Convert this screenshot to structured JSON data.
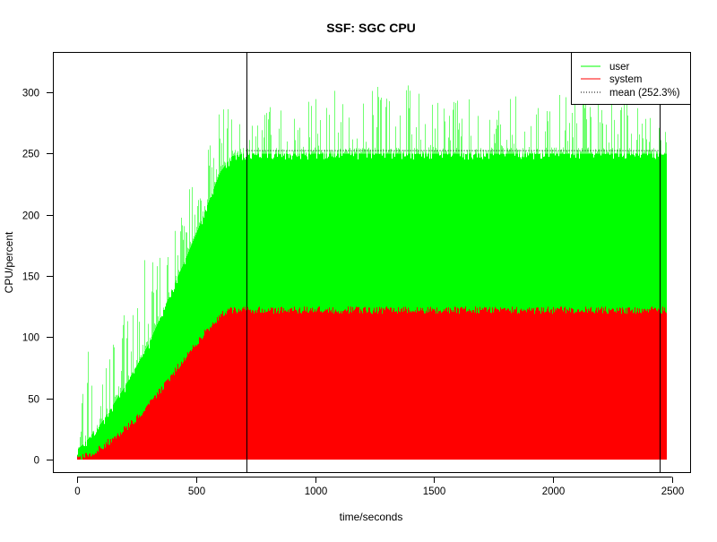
{
  "chart_data": {
    "type": "area",
    "title": "SSF: SGC CPU",
    "xlabel": "time/seconds",
    "ylabel": "CPU/percent",
    "xlim": [
      -100,
      2590
    ],
    "ylim": [
      -8,
      332
    ],
    "xticks": [
      0,
      500,
      1000,
      1500,
      2000,
      2500
    ],
    "yticks": [
      0,
      50,
      100,
      150,
      200,
      250,
      300
    ],
    "grid": false,
    "legend_position": "top-right",
    "legend": [
      {
        "label": "user",
        "color": "#00ff00",
        "style": "solid"
      },
      {
        "label": "system",
        "color": "#ff0000",
        "style": "solid"
      },
      {
        "label": "mean (252.3%)",
        "color": "#000000",
        "style": "dotted"
      }
    ],
    "mean": 252.3,
    "mean_range": [
      710,
      2450
    ],
    "vlines": [
      710,
      2450
    ],
    "x": [
      0,
      50,
      100,
      150,
      200,
      250,
      300,
      350,
      400,
      450,
      500,
      550,
      600,
      650,
      700,
      750,
      1000,
      1250,
      1500,
      1750,
      2000,
      2250,
      2475
    ],
    "series": [
      {
        "name": "system",
        "color": "#ff0000",
        "values": [
          0,
          4,
          10,
          17,
          25,
          34,
          45,
          57,
          70,
          82,
          95,
          107,
          118,
          122,
          122,
          122,
          122,
          122,
          122,
          122,
          122,
          122,
          122
        ]
      },
      {
        "name": "user",
        "color": "#00ff00",
        "note_stacked": true,
        "values": [
          8,
          18,
          30,
          45,
          60,
          77,
          95,
          117,
          140,
          162,
          185,
          210,
          235,
          248,
          250,
          250,
          250,
          250,
          250,
          250,
          250,
          250,
          250
        ]
      }
    ],
    "user_peaks": [
      25,
      95,
      75,
      100,
      120,
      170,
      165,
      185,
      200,
      215,
      240,
      255,
      290,
      290,
      285,
      290,
      295,
      320,
      295,
      295,
      300,
      295,
      290
    ]
  }
}
